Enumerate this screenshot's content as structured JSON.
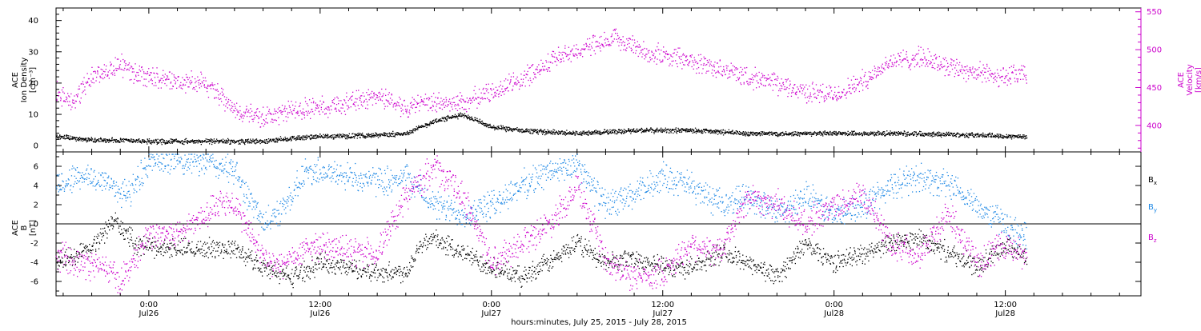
{
  "x_axis": {
    "title": "hours:minutes, July 25, 2015 - July 28, 2015",
    "ticks": [
      {
        "time": "0:00",
        "date": "Jul26",
        "hour": 24
      },
      {
        "time": "12:00",
        "date": "Jul26",
        "hour": 36
      },
      {
        "time": "0:00",
        "date": "Jul27",
        "hour": 48
      },
      {
        "time": "12:00",
        "date": "Jul27",
        "hour": 60
      },
      {
        "time": "0:00",
        "date": "Jul28",
        "hour": 72
      },
      {
        "time": "12:00",
        "date": "Jul28",
        "hour": 84
      }
    ],
    "xlim_hours": [
      17.5,
      93.5
    ]
  },
  "colors": {
    "black": "#000000",
    "blue": "#1e88e5",
    "magenta": "#cc00cc"
  },
  "chart_data": [
    {
      "type": "scatter",
      "panel": "top",
      "left_axis": {
        "label_line1": "ACE",
        "label_line2": "Ion Density",
        "label_line3": "[cm⁻³]",
        "ylim": [
          -2,
          44
        ],
        "ticks": [
          "0",
          "10",
          "20",
          "30",
          "40"
        ],
        "tick_values": [
          0,
          10,
          20,
          30,
          40
        ]
      },
      "right_axis": {
        "label_line1": "ACE",
        "label_line2": "Velocity",
        "label_line3": "[km/s]",
        "ylim": [
          365,
          555
        ],
        "ticks": [
          "400",
          "450",
          "500",
          "550"
        ],
        "tick_values": [
          400,
          450,
          500,
          550
        ]
      },
      "series": [
        {
          "name": "density",
          "color": "#000000",
          "x": [
            17.5,
            20,
            24,
            28,
            32,
            34,
            36,
            40,
            42,
            44,
            46,
            48,
            50,
            54,
            58,
            62,
            66,
            70,
            74,
            78,
            82,
            85.5
          ],
          "y": [
            3,
            2,
            1.5,
            1.5,
            1.5,
            2.5,
            3,
            3.5,
            4,
            8,
            10,
            6,
            5,
            4,
            5,
            5,
            4,
            4,
            4,
            4,
            3.5,
            3
          ]
        },
        {
          "name": "velocity",
          "color": "#cc00cc",
          "x": [
            17.5,
            18.5,
            20,
            22,
            23,
            25,
            28,
            30,
            32,
            34,
            36,
            38,
            40,
            42,
            44,
            46,
            48,
            50,
            52,
            54,
            56,
            57,
            59,
            61,
            63,
            64,
            66,
            68,
            70,
            72,
            74,
            76,
            78,
            80,
            82,
            84,
            85.5
          ],
          "y": [
            445,
            430,
            465,
            480,
            470,
            460,
            455,
            420,
            410,
            420,
            425,
            430,
            440,
            425,
            430,
            430,
            445,
            460,
            485,
            500,
            510,
            515,
            495,
            490,
            480,
            475,
            465,
            455,
            445,
            440,
            460,
            485,
            490,
            480,
            470,
            465,
            468
          ]
        }
      ]
    },
    {
      "type": "scatter",
      "panel": "bottom",
      "left_axis": {
        "label_line1": "ACE",
        "label_line2": "B",
        "label_line3": "[nT]",
        "ylim": [
          -7.5,
          7.5
        ],
        "ticks": [
          "-6",
          "-4",
          "-2",
          "0",
          "2",
          "4",
          "6"
        ],
        "tick_values": [
          -6,
          -4,
          -2,
          0,
          2,
          4,
          6
        ]
      },
      "zero_line": 0,
      "legend": {
        "position": "right",
        "entries": [
          "Bx",
          "By",
          "Bz"
        ]
      },
      "series": [
        {
          "name": "Bx",
          "color": "#000000",
          "x": [
            17.5,
            20,
            21.5,
            23,
            25,
            28,
            30,
            32,
            34,
            36,
            38,
            40,
            42,
            43,
            44,
            46,
            48,
            50,
            52,
            54,
            56,
            58,
            60,
            62,
            64,
            66,
            68,
            70,
            72,
            74,
            76,
            78,
            80,
            82,
            84,
            85.5
          ],
          "y": [
            -4,
            -2.5,
            0.5,
            -2,
            -2.5,
            -2.5,
            -2.5,
            -4.5,
            -5.5,
            -4,
            -4.5,
            -5,
            -5,
            -2,
            -1.5,
            -3,
            -4.5,
            -5.5,
            -4,
            -2,
            -4,
            -3.5,
            -4.5,
            -4.5,
            -3,
            -4,
            -5.5,
            -2,
            -4,
            -3,
            -2,
            -1.5,
            -3,
            -4.5,
            -2,
            -3.5
          ]
        },
        {
          "name": "By",
          "color": "#1e88e5",
          "x": [
            17.5,
            19,
            21,
            22.5,
            24,
            26,
            28,
            30,
            32,
            33.5,
            35,
            36,
            38,
            40,
            42,
            44,
            46,
            48,
            50,
            52,
            54,
            56,
            58,
            60,
            62,
            64,
            66,
            68,
            70,
            72,
            74,
            76,
            78,
            80,
            82,
            84,
            85.5
          ],
          "y": [
            4,
            5,
            4.5,
            3,
            6.5,
            6.5,
            6.5,
            5.5,
            0,
            2,
            5.5,
            5.5,
            5,
            4.5,
            5,
            2,
            1,
            2,
            4,
            5.5,
            6,
            2,
            3,
            5,
            4,
            2,
            3,
            1,
            3,
            1,
            2,
            4,
            5,
            4,
            2,
            0,
            -1.5
          ]
        },
        {
          "name": "Bz",
          "color": "#cc00cc",
          "x": [
            17.5,
            19,
            21,
            22,
            23,
            24,
            26,
            28,
            29,
            30,
            32,
            33,
            34,
            36,
            38,
            40,
            42,
            44,
            46,
            48,
            50,
            52,
            54,
            56,
            58,
            60,
            62,
            64,
            66,
            68,
            70,
            72,
            74,
            76,
            78,
            80,
            82,
            84,
            85.5
          ],
          "y": [
            -3,
            -4,
            -4.5,
            -6,
            -3.5,
            -1,
            -1,
            1,
            2.5,
            2,
            -3.5,
            -4.5,
            -3.5,
            -2,
            -3,
            -3,
            3,
            6,
            3,
            -4,
            -2,
            0,
            4,
            -4,
            -5.5,
            -5,
            -2,
            -3,
            3,
            2,
            0,
            2,
            3,
            -2,
            -3,
            1,
            -4,
            -2,
            -3.5
          ]
        }
      ]
    }
  ]
}
